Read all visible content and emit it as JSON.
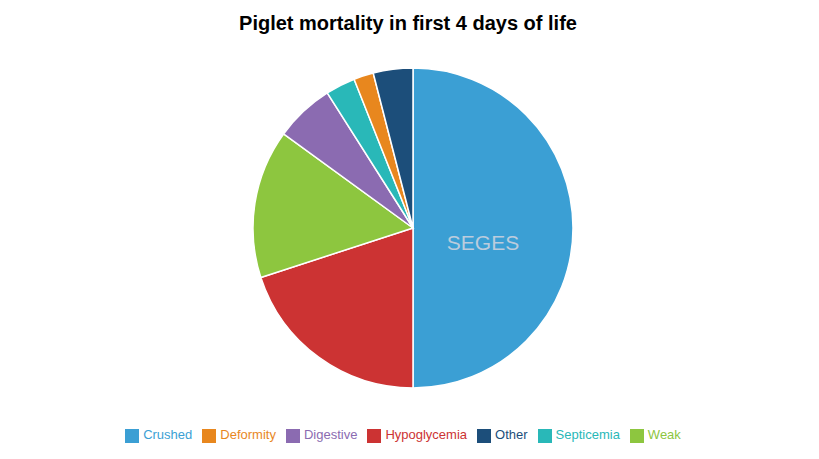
{
  "chart_data": {
    "type": "pie",
    "title": "Piglet mortality in first 4 days of life",
    "categories": [
      "Crushed",
      "Hypoglycemia",
      "Weak",
      "Digestive",
      "Septicemia",
      "Deformity",
      "Other"
    ],
    "values": [
      50,
      20,
      15,
      6,
      3,
      2,
      4
    ],
    "colors": [
      "#3B9FD4",
      "#CC3333",
      "#8DC63F",
      "#8B6BB1",
      "#29B8B8",
      "#E8871E",
      "#1C4E7A"
    ],
    "annotation": "SEGES"
  }
}
